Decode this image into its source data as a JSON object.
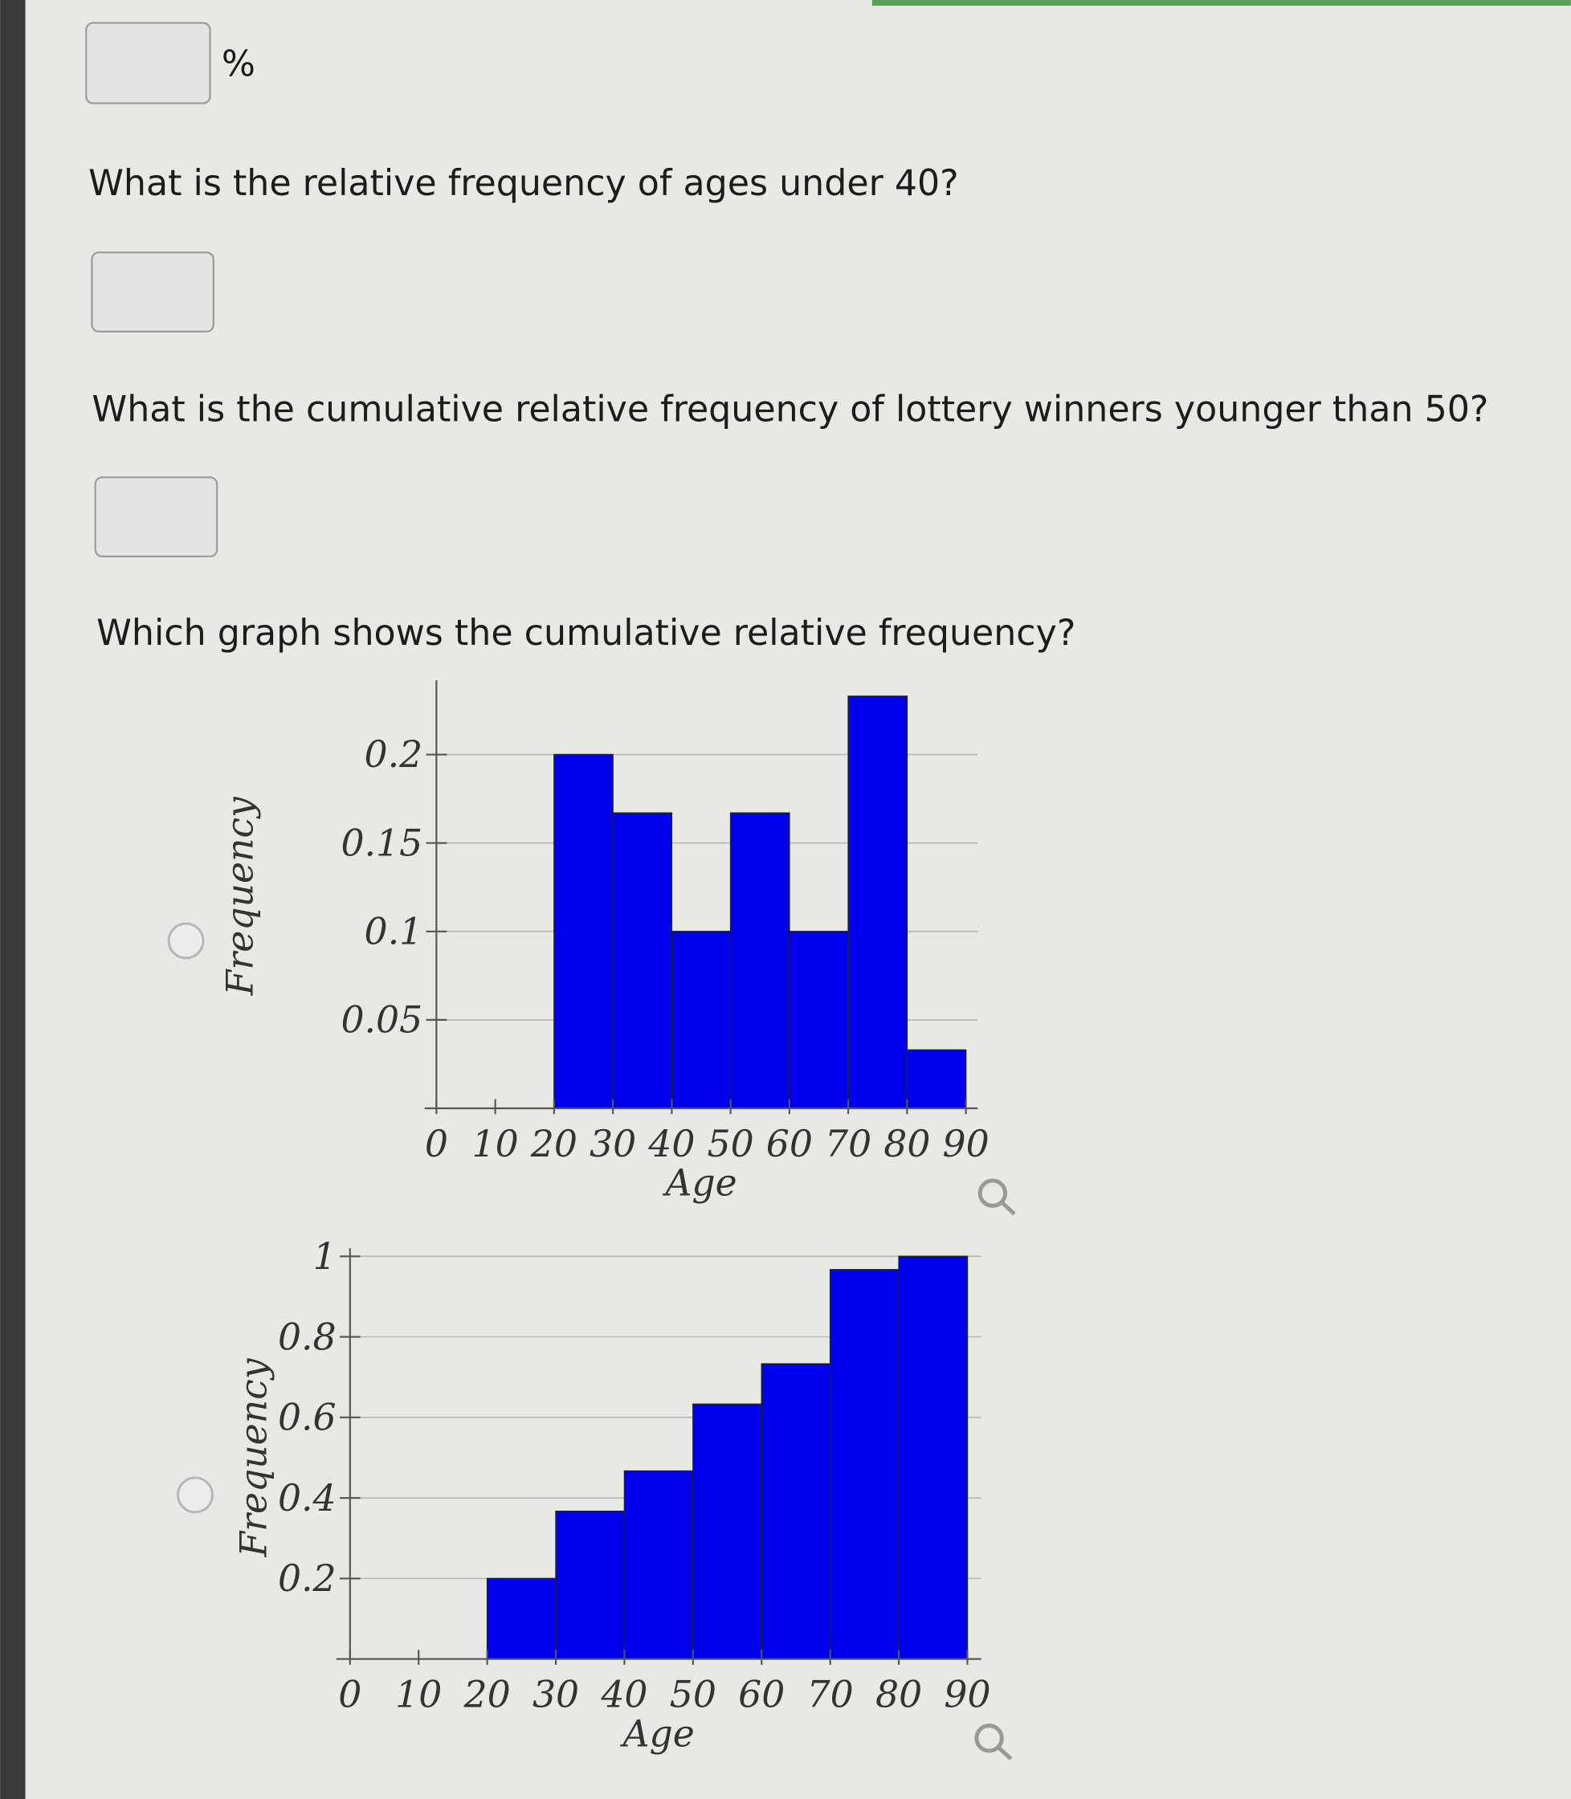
{
  "first_answer_unit": "%",
  "questions": [
    "What is the relative frequency of ages under 40?",
    "What is the cumulative relative frequency of lottery winners younger than 50?",
    "Which graph shows the cumulative relative frequency?"
  ],
  "chart_data": [
    {
      "type": "histogram",
      "bins": [
        0,
        10,
        20,
        30,
        40,
        50,
        60,
        70,
        80,
        90
      ],
      "values": [
        0,
        0,
        0.2,
        0.167,
        0.1,
        0.167,
        0.1,
        0.233,
        0.033
      ],
      "xlabel": "Age",
      "ylabel": "Frequency",
      "color": "#0000ee",
      "xlim": [
        -2,
        92
      ],
      "ylim": [
        0,
        0.24
      ],
      "xticks": [
        0,
        10,
        20,
        30,
        40,
        50,
        60,
        70,
        80,
        90
      ],
      "yticks": [
        0.05,
        0.1,
        0.15,
        0.2
      ],
      "grid": true
    },
    {
      "type": "histogram",
      "bins": [
        0,
        10,
        20,
        30,
        40,
        50,
        60,
        70,
        80,
        90
      ],
      "values": [
        0,
        0,
        0.2,
        0.367,
        0.467,
        0.633,
        0.733,
        0.967,
        1
      ],
      "xlabel": "Age",
      "ylabel": "Frequency",
      "color": "#0000ee",
      "xlim": [
        -2,
        92
      ],
      "ylim": [
        0,
        1
      ],
      "xticks": [
        0,
        10,
        20,
        30,
        40,
        50,
        60,
        70,
        80,
        90
      ],
      "yticks": [
        0.2,
        0.4,
        0.6,
        0.8,
        1
      ],
      "grid": true
    }
  ]
}
